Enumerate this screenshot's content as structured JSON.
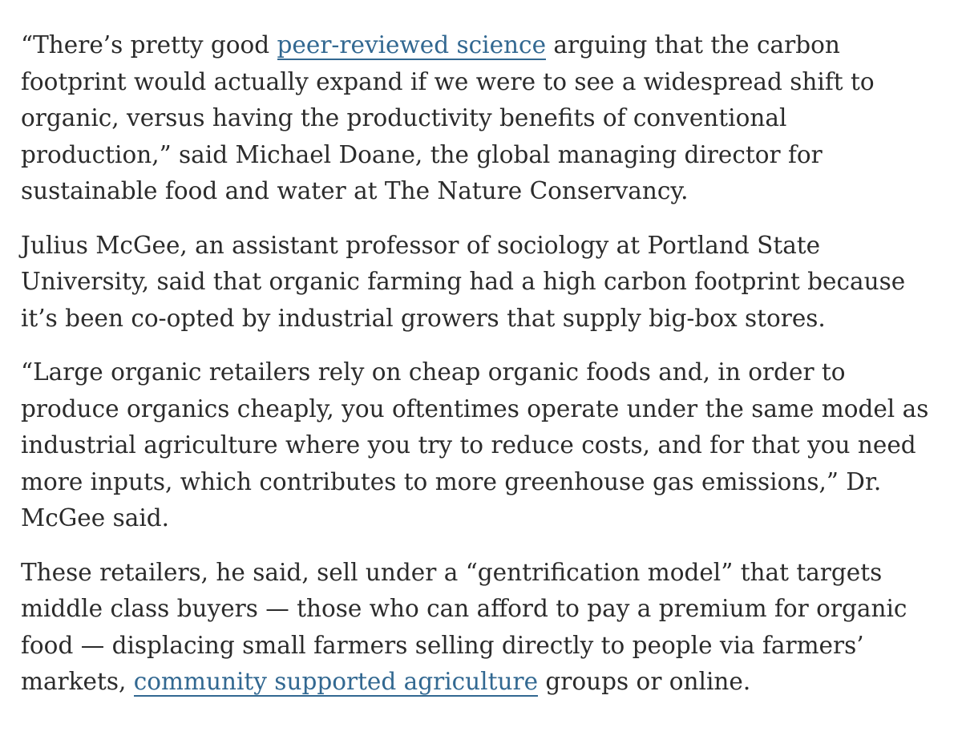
{
  "article": {
    "paragraphs": [
      {
        "lines": [
          {
            "before": "“There’s pretty good ",
            "link": "peer-reviewed science",
            "after": " arguing that the carbon"
          },
          {
            "text": "footprint would actually expand if we were to see a widespread shift to"
          },
          {
            "text": "organic, versus having the productivity benefits of conventional"
          },
          {
            "text": "production,” said Michael Doane, the global managing director for"
          },
          {
            "text": "sustainable food and water at The Nature Conservancy."
          }
        ]
      },
      {
        "lines": [
          {
            "text": "Julius McGee, an assistant professor of sociology at Portland State"
          },
          {
            "text": "University, said that organic farming had a high carbon footprint because"
          },
          {
            "text": "it’s been co-opted by industrial growers that supply big-box stores."
          }
        ]
      },
      {
        "lines": [
          {
            "text": "“Large organic retailers rely on cheap organic foods and, in order to"
          },
          {
            "text": "produce organics cheaply, you oftentimes operate under the same model as"
          },
          {
            "text": "industrial agriculture where you try to reduce costs, and for that you need"
          },
          {
            "text": "more inputs, which contributes to more greenhouse gas emissions,” Dr."
          },
          {
            "text": "McGee said."
          }
        ]
      },
      {
        "lines": [
          {
            "text": "These retailers, he said, sell under a “gentrification model” that targets"
          },
          {
            "text": "middle class buyers — those who can afford to pay a premium for organic"
          },
          {
            "text": "food — displacing small farmers selling directly to people via farmers’"
          },
          {
            "before": "markets, ",
            "link": "community supported agriculture",
            "after": " groups or online."
          }
        ]
      }
    ]
  },
  "colors": {
    "text": "#2b2b2b",
    "link": "#326891",
    "background": "#ffffff"
  }
}
